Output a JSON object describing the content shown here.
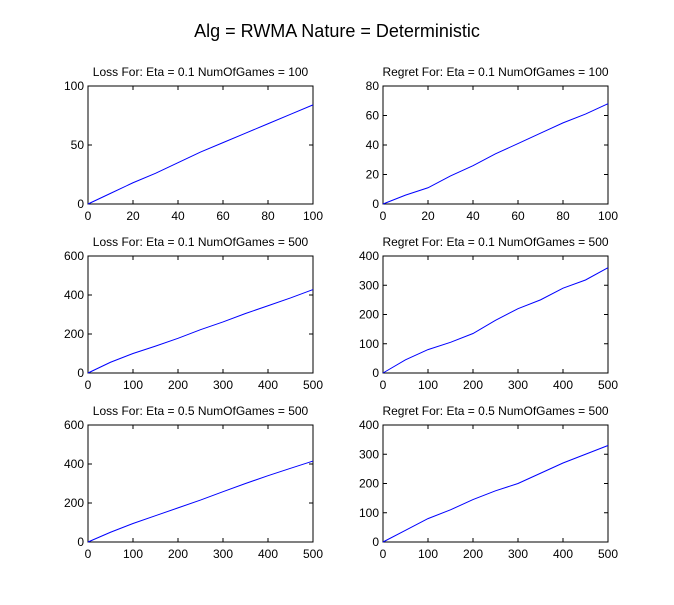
{
  "figure": {
    "title": "Alg = RWMA Nature = Deterministic"
  },
  "chart_data": [
    {
      "type": "line",
      "title": "Loss For: Eta = 0.1 NumOfGames = 100",
      "xlabel": "",
      "ylabel": "",
      "xlim": [
        0,
        100
      ],
      "ylim": [
        0,
        100
      ],
      "xticks": [
        0,
        20,
        40,
        60,
        80,
        100
      ],
      "yticks": [
        0,
        50,
        100
      ],
      "grid": false,
      "line_color": "#0000ff",
      "series": [
        {
          "x": [
            0,
            10,
            20,
            30,
            40,
            50,
            60,
            70,
            80,
            90,
            100
          ],
          "y": [
            0,
            9,
            18,
            26,
            35,
            44,
            52,
            60,
            68,
            76,
            84
          ]
        }
      ]
    },
    {
      "type": "line",
      "title": "Regret For: Eta = 0.1 NumOfGames = 100",
      "xlabel": "",
      "ylabel": "",
      "xlim": [
        0,
        100
      ],
      "ylim": [
        0,
        80
      ],
      "xticks": [
        0,
        20,
        40,
        60,
        80,
        100
      ],
      "yticks": [
        0,
        20,
        40,
        60,
        80
      ],
      "grid": false,
      "line_color": "#0000ff",
      "series": [
        {
          "x": [
            0,
            10,
            20,
            30,
            40,
            50,
            60,
            70,
            80,
            90,
            100
          ],
          "y": [
            0,
            6,
            11,
            19,
            26,
            34,
            41,
            48,
            55,
            61,
            68
          ]
        }
      ]
    },
    {
      "type": "line",
      "title": "Loss For: Eta = 0.1 NumOfGames = 500",
      "xlabel": "",
      "ylabel": "",
      "xlim": [
        0,
        500
      ],
      "ylim": [
        0,
        600
      ],
      "xticks": [
        0,
        100,
        200,
        300,
        400,
        500
      ],
      "yticks": [
        0,
        200,
        400,
        600
      ],
      "grid": false,
      "line_color": "#0000ff",
      "series": [
        {
          "x": [
            0,
            50,
            100,
            150,
            200,
            250,
            300,
            350,
            400,
            450,
            500
          ],
          "y": [
            0,
            55,
            100,
            138,
            178,
            222,
            262,
            305,
            345,
            385,
            428
          ]
        }
      ]
    },
    {
      "type": "line",
      "title": "Regret For: Eta = 0.1 NumOfGames = 500",
      "xlabel": "",
      "ylabel": "",
      "xlim": [
        0,
        500
      ],
      "ylim": [
        0,
        400
      ],
      "xticks": [
        0,
        100,
        200,
        300,
        400,
        500
      ],
      "yticks": [
        0,
        100,
        200,
        300,
        400
      ],
      "grid": false,
      "line_color": "#0000ff",
      "series": [
        {
          "x": [
            0,
            50,
            100,
            150,
            200,
            250,
            300,
            350,
            400,
            450,
            500
          ],
          "y": [
            0,
            45,
            80,
            105,
            135,
            180,
            220,
            250,
            290,
            318,
            360
          ]
        }
      ]
    },
    {
      "type": "line",
      "title": "Loss For: Eta = 0.5 NumOfGames = 500",
      "xlabel": "",
      "ylabel": "",
      "xlim": [
        0,
        500
      ],
      "ylim": [
        0,
        600
      ],
      "xticks": [
        0,
        100,
        200,
        300,
        400,
        500
      ],
      "yticks": [
        0,
        200,
        400,
        600
      ],
      "grid": false,
      "line_color": "#0000ff",
      "series": [
        {
          "x": [
            0,
            50,
            100,
            150,
            200,
            250,
            300,
            350,
            400,
            450,
            500
          ],
          "y": [
            0,
            50,
            95,
            135,
            175,
            215,
            258,
            300,
            340,
            378,
            415
          ]
        }
      ]
    },
    {
      "type": "line",
      "title": "Regret For: Eta = 0.5 NumOfGames = 500",
      "xlabel": "",
      "ylabel": "",
      "xlim": [
        0,
        500
      ],
      "ylim": [
        0,
        400
      ],
      "xticks": [
        0,
        100,
        200,
        300,
        400,
        500
      ],
      "yticks": [
        0,
        100,
        200,
        300,
        400
      ],
      "grid": false,
      "line_color": "#0000ff",
      "series": [
        {
          "x": [
            0,
            50,
            100,
            150,
            200,
            250,
            300,
            350,
            400,
            450,
            500
          ],
          "y": [
            0,
            40,
            80,
            110,
            145,
            175,
            200,
            235,
            270,
            300,
            330
          ]
        }
      ]
    }
  ]
}
